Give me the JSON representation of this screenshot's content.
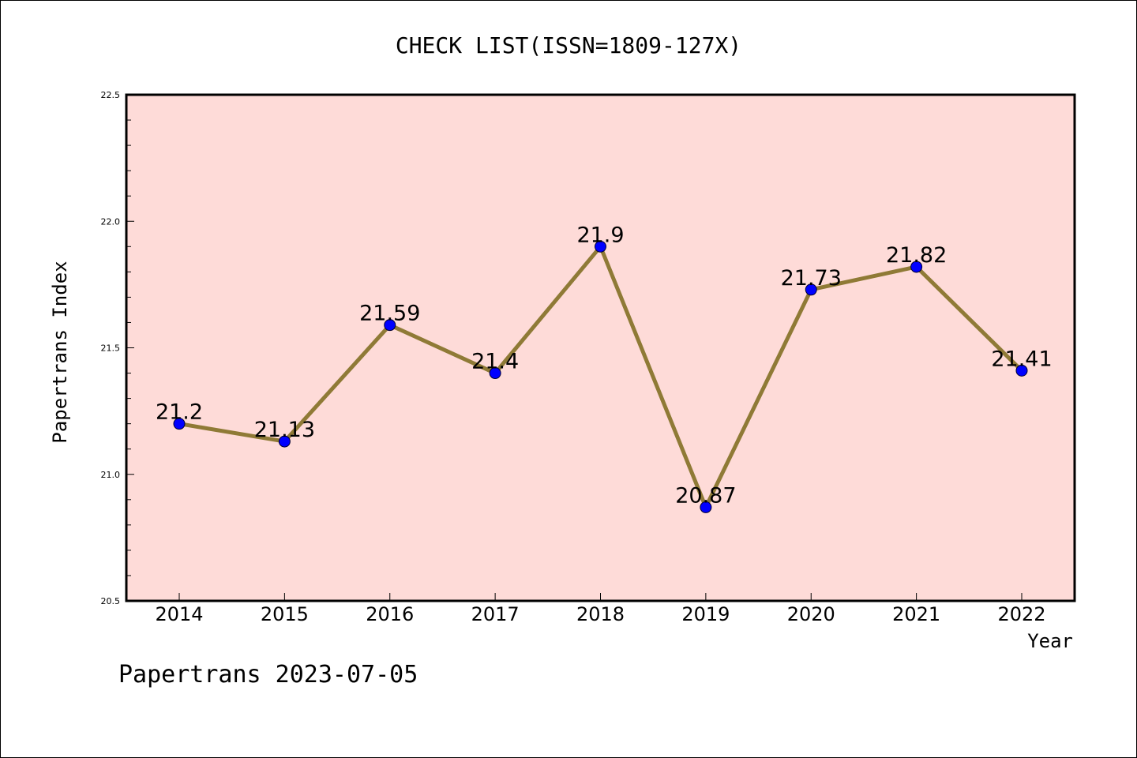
{
  "chart_data": {
    "type": "line",
    "title": "CHECK LIST(ISSN=1809-127X)",
    "xlabel": "Year",
    "ylabel": "Papertrans Index",
    "categories": [
      "2014",
      "2015",
      "2016",
      "2017",
      "2018",
      "2019",
      "2020",
      "2021",
      "2022"
    ],
    "values": [
      21.2,
      21.13,
      21.59,
      21.4,
      21.9,
      20.87,
      21.73,
      21.82,
      21.41
    ],
    "data_labels": [
      "21.2",
      "21.13",
      "21.59",
      "21.4",
      "21.9",
      "20.87",
      "21.73",
      "21.82",
      "21.41"
    ],
    "ylim": [
      20.5,
      22.5
    ],
    "yticks": [
      "20.5",
      "21.0",
      "21.5",
      "22.0",
      "22.5"
    ],
    "grid": false,
    "colors": {
      "plot_background": "#fedbd8",
      "line": "#8f7a36",
      "marker": "#0000ff"
    }
  },
  "footer": {
    "credit": "Papertrans 2023-07-05"
  }
}
